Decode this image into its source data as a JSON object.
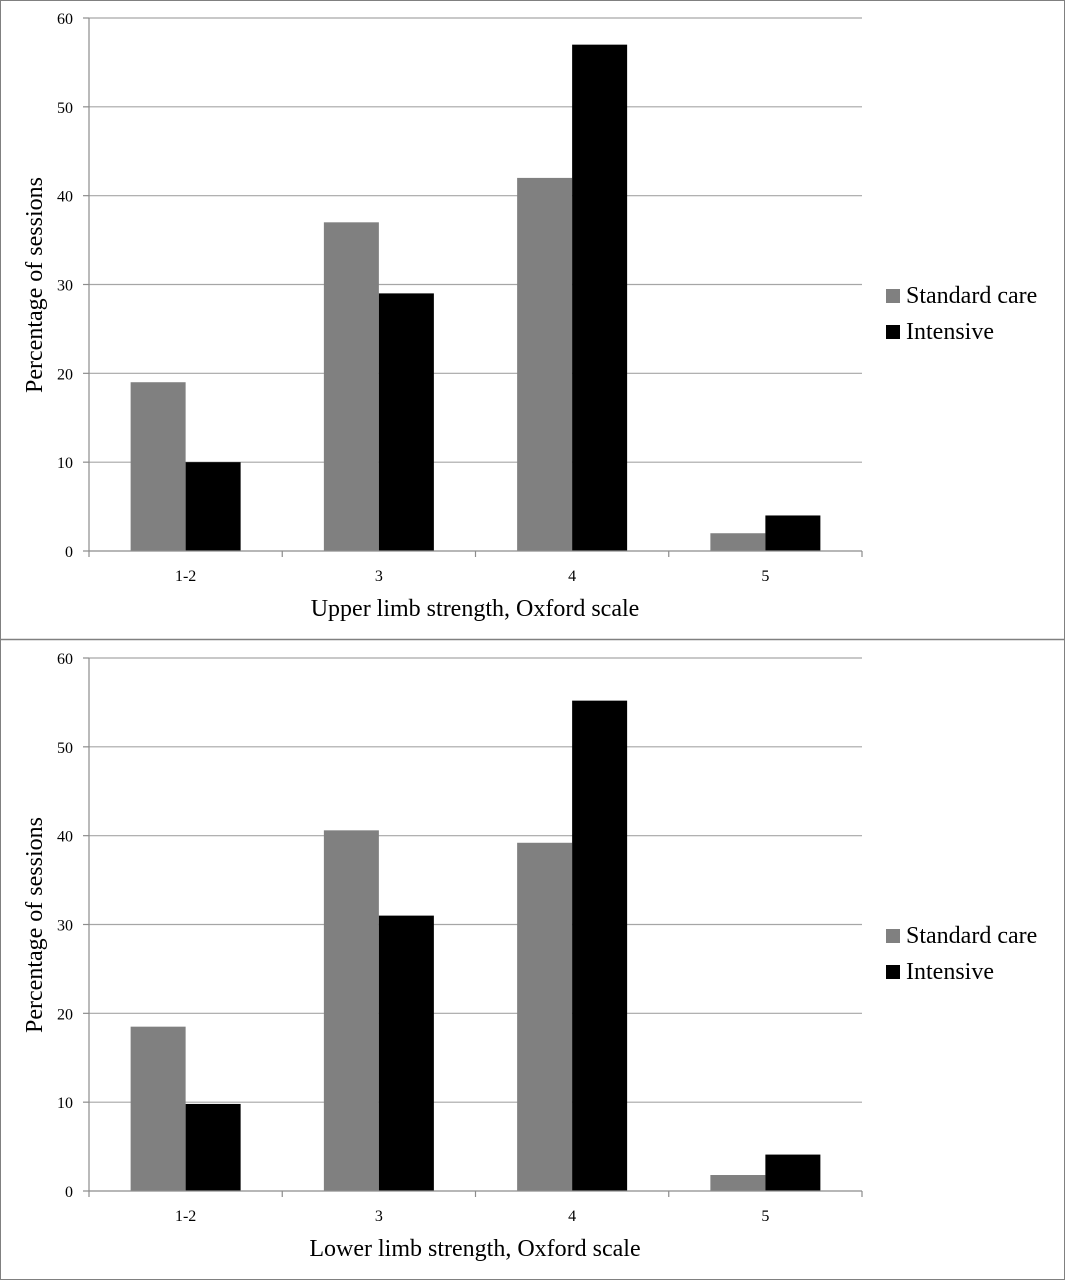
{
  "colors": {
    "standard_care": "#808080",
    "intensive": "#000000",
    "gridline": "#a6a6a6",
    "axis": "#8c8c8c",
    "frame": "#808080"
  },
  "chart_data": [
    {
      "type": "bar",
      "title": "",
      "xlabel": "Upper limb strength, Oxford scale",
      "ylabel": "Percentage of sessions",
      "categories": [
        "1-2",
        "3",
        "4",
        "5"
      ],
      "ylim": [
        0,
        60
      ],
      "yticks": [
        "0",
        "10",
        "20",
        "30",
        "40",
        "50",
        "60"
      ],
      "grid": true,
      "legend_position": "right",
      "series": [
        {
          "name": "Standard care",
          "values": [
            19,
            37,
            42,
            2
          ]
        },
        {
          "name": "Intensive",
          "values": [
            10,
            29,
            57,
            4
          ]
        }
      ]
    },
    {
      "type": "bar",
      "title": "",
      "xlabel": "Lower limb strength, Oxford scale",
      "ylabel": "Percentage of sessions",
      "categories": [
        "1-2",
        "3",
        "4",
        "5"
      ],
      "ylim": [
        0,
        60
      ],
      "yticks": [
        "0",
        "10",
        "20",
        "30",
        "40",
        "50",
        "60"
      ],
      "grid": true,
      "legend_position": "right",
      "series": [
        {
          "name": "Standard care",
          "values": [
            18.5,
            40.6,
            39.2,
            1.8
          ]
        },
        {
          "name": "Intensive",
          "values": [
            9.8,
            31,
            55.2,
            4.1
          ]
        }
      ]
    }
  ]
}
